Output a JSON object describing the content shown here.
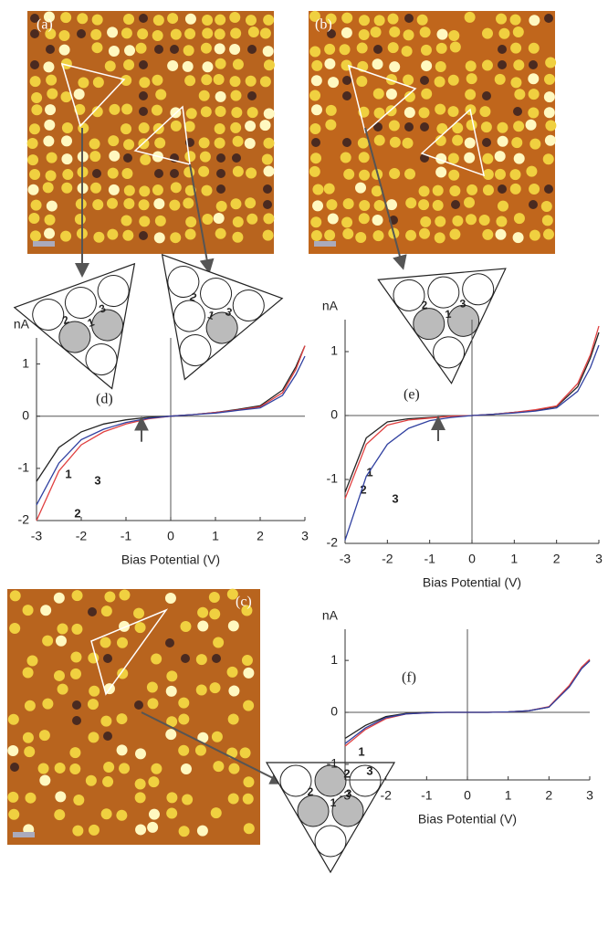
{
  "images": [
    {
      "label": "(a)"
    },
    {
      "label": "(b)"
    },
    {
      "label": "(c)"
    }
  ],
  "diagrams": [
    {
      "labels": [
        "1",
        "2",
        "3"
      ]
    },
    {
      "labels": [
        "1",
        "2",
        "3"
      ]
    },
    {
      "labels": [
        "1",
        "2",
        "3"
      ]
    },
    {
      "labels": [
        "1",
        "2",
        "3"
      ]
    }
  ],
  "chart_data": [
    {
      "type": "line",
      "label": "(d)",
      "ylabel": "nA",
      "xlabel": "Bias Potential (V)",
      "x": [
        -3,
        -2.5,
        -2,
        -1.5,
        -1,
        -0.5,
        0,
        0.5,
        1,
        1.5,
        2,
        2.5,
        2.8,
        3
      ],
      "series": [
        {
          "name": "1",
          "color": "#222222",
          "values": [
            -1.25,
            -0.6,
            -0.3,
            -0.15,
            -0.07,
            -0.02,
            0,
            0.03,
            0.07,
            0.13,
            0.2,
            0.5,
            0.95,
            1.35
          ]
        },
        {
          "name": "2",
          "color": "#e04040",
          "values": [
            -2,
            -1.05,
            -0.55,
            -0.3,
            -0.15,
            -0.05,
            0,
            0.03,
            0.07,
            0.12,
            0.18,
            0.45,
            0.9,
            1.35
          ]
        },
        {
          "name": "3",
          "color": "#3040a0",
          "values": [
            -1.7,
            -0.9,
            -0.45,
            -0.25,
            -0.12,
            -0.04,
            0,
            0.03,
            0.06,
            0.11,
            0.16,
            0.4,
            0.8,
            1.15
          ]
        }
      ],
      "xlim": [
        -3,
        3
      ],
      "ylim": [
        -2,
        1.5
      ],
      "xticks": [
        -3,
        -2,
        -1,
        0,
        1,
        2,
        3
      ],
      "yticks": [
        -2,
        -1,
        0,
        1
      ]
    },
    {
      "type": "line",
      "label": "(e)",
      "ylabel": "nA",
      "xlabel": "Bias Potential (V)",
      "x": [
        -3,
        -2.5,
        -2,
        -1.5,
        -1,
        -0.5,
        0,
        0.5,
        1,
        1.5,
        2,
        2.5,
        2.8,
        3
      ],
      "series": [
        {
          "name": "1",
          "color": "#222222",
          "values": [
            -1.2,
            -0.35,
            -0.1,
            -0.05,
            -0.03,
            -0.01,
            0,
            0.02,
            0.05,
            0.08,
            0.14,
            0.45,
            0.9,
            1.3
          ]
        },
        {
          "name": "2",
          "color": "#e04040",
          "values": [
            -1.3,
            -0.45,
            -0.15,
            -0.07,
            -0.04,
            -0.01,
            0,
            0.02,
            0.05,
            0.09,
            0.15,
            0.5,
            0.95,
            1.4
          ]
        },
        {
          "name": "3",
          "color": "#3040a0",
          "values": [
            -1.95,
            -0.95,
            -0.45,
            -0.2,
            -0.08,
            -0.03,
            0,
            0.02,
            0.04,
            0.07,
            0.12,
            0.38,
            0.75,
            1.1
          ]
        }
      ],
      "xlim": [
        -3,
        3
      ],
      "ylim": [
        -2,
        1.5
      ],
      "xticks": [
        -3,
        -2,
        -1,
        0,
        1,
        2,
        3
      ],
      "yticks": [
        -2,
        -1,
        0,
        1
      ]
    },
    {
      "type": "line",
      "label": "(f)",
      "ylabel": "nA",
      "xlabel": "Bias Potential (V)",
      "x": [
        -3,
        -2.5,
        -2,
        -1.5,
        -1,
        -0.5,
        0,
        0.5,
        1,
        1.5,
        2,
        2.5,
        2.8,
        3
      ],
      "series": [
        {
          "name": "1",
          "color": "#222222",
          "values": [
            -0.5,
            -0.25,
            -0.08,
            -0.02,
            0,
            0,
            0,
            0,
            0.01,
            0.03,
            0.1,
            0.5,
            0.85,
            1.0
          ]
        },
        {
          "name": "2",
          "color": "#e04040",
          "values": [
            -0.65,
            -0.33,
            -0.12,
            -0.03,
            -0.01,
            0,
            0,
            0,
            0.01,
            0.03,
            0.11,
            0.52,
            0.87,
            1.02
          ]
        },
        {
          "name": "3",
          "color": "#3040a0",
          "values": [
            -0.6,
            -0.3,
            -0.1,
            -0.03,
            -0.01,
            0,
            0,
            0,
            0.01,
            0.03,
            0.1,
            0.49,
            0.84,
            0.99
          ]
        }
      ],
      "xlim": [
        -3,
        3
      ],
      "ylim": [
        -1.3,
        1.6
      ],
      "xticks": [
        -3,
        -2,
        -1,
        0,
        1,
        2,
        3
      ],
      "yticks": [
        -1,
        0,
        1
      ]
    }
  ]
}
